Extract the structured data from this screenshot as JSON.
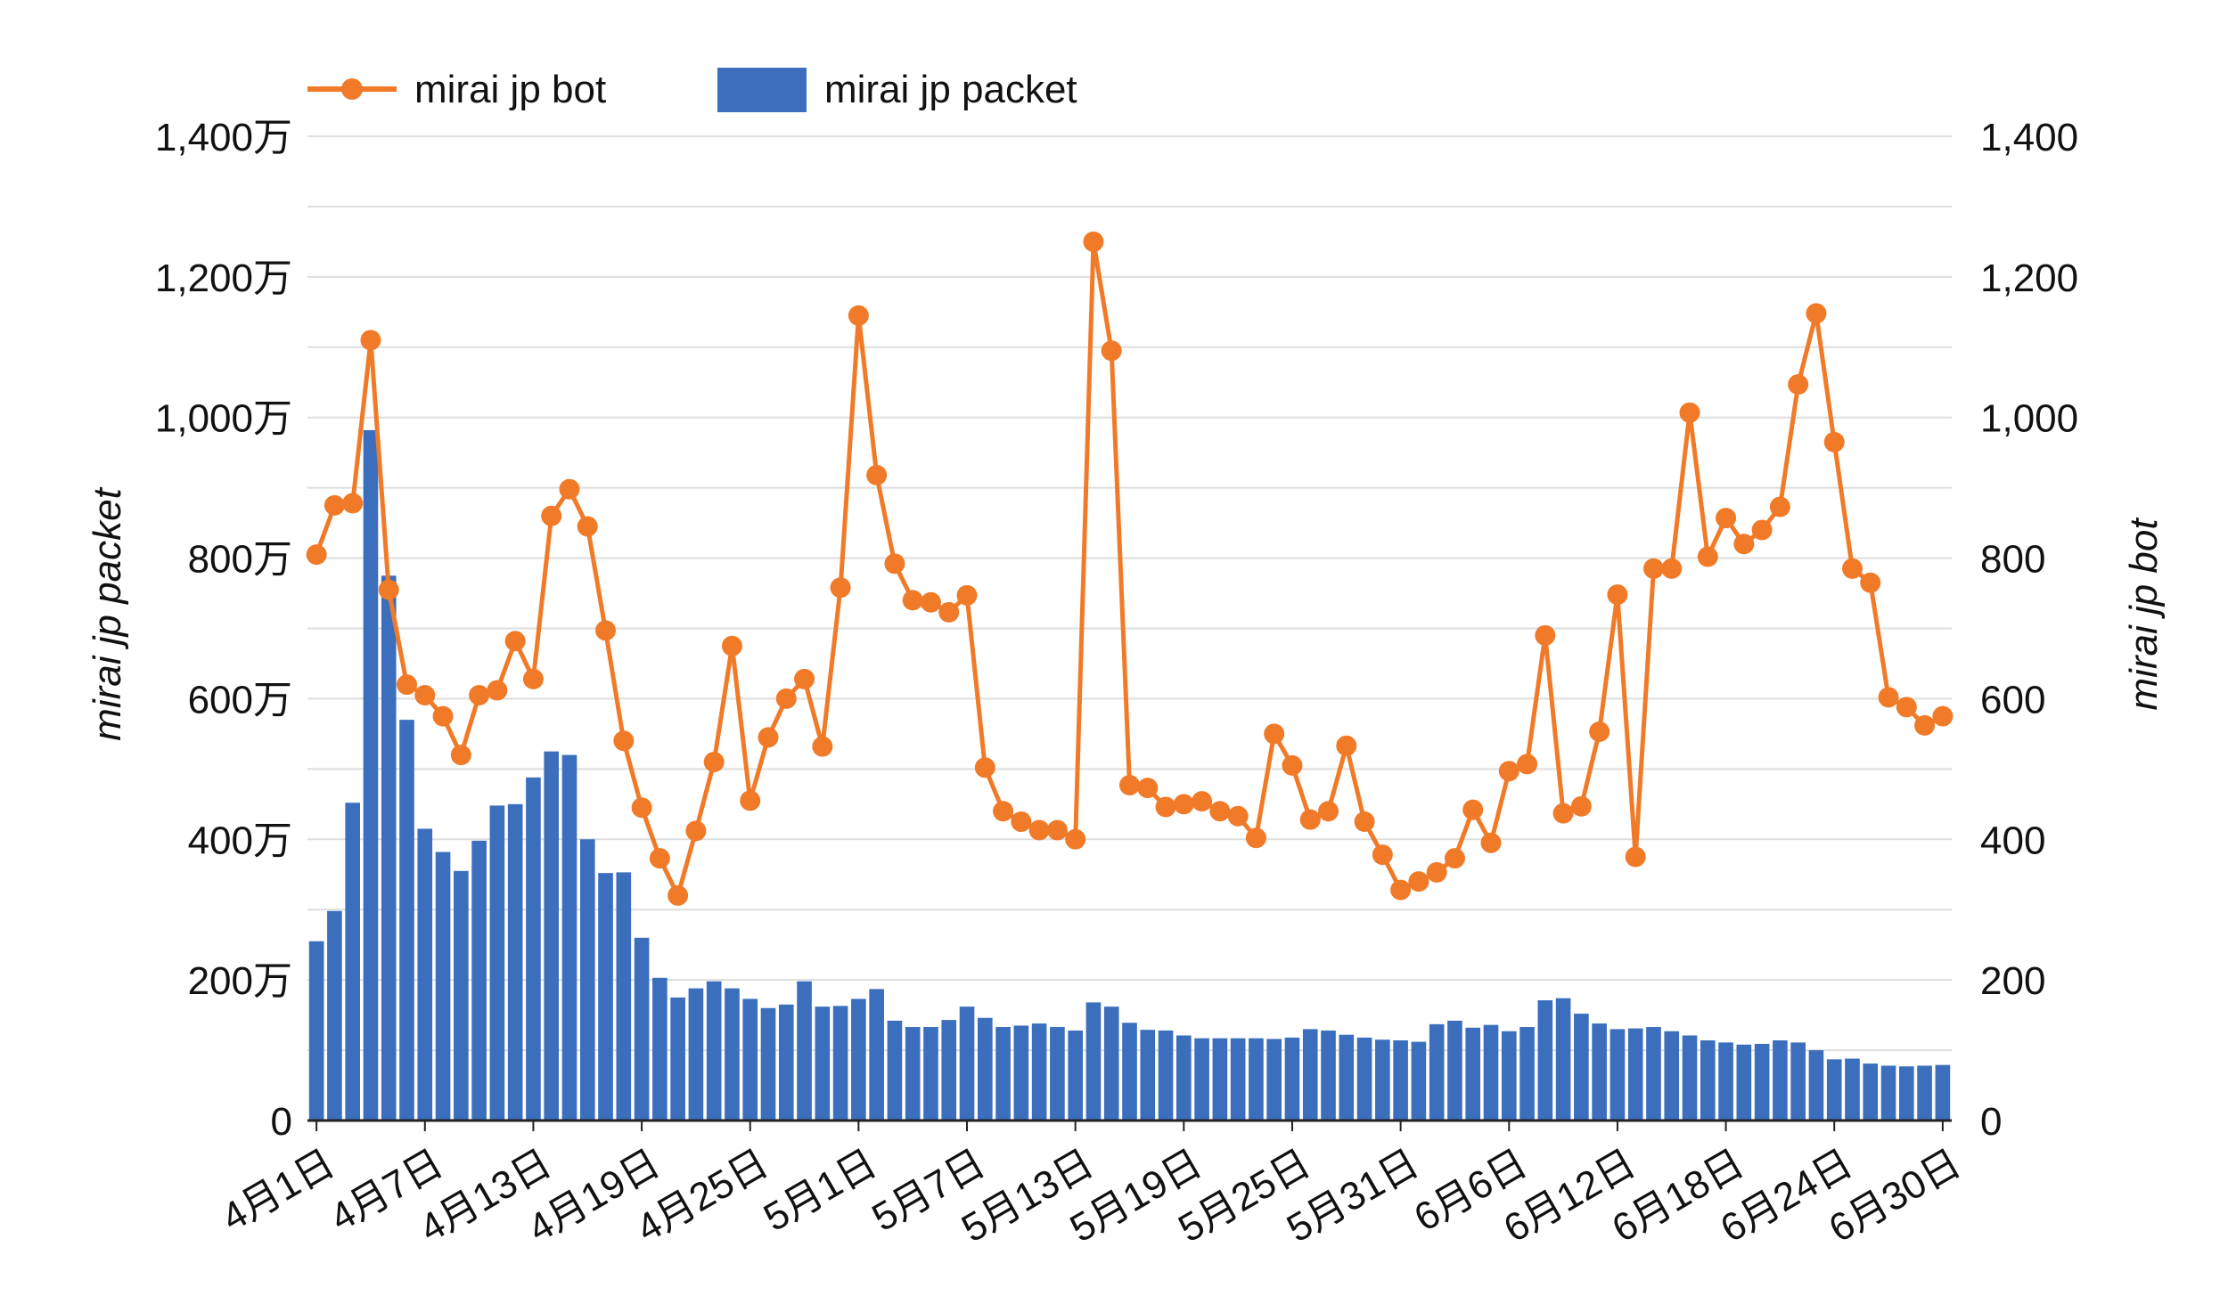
{
  "chart_data": {
    "type": "bar+line",
    "x_tick_labels": [
      "4月1日",
      "4月7日",
      "4月13日",
      "4月19日",
      "4月25日",
      "5月1日",
      "5月7日",
      "5月13日",
      "5月19日",
      "5月25日",
      "5月31日",
      "6月6日",
      "6月12日",
      "6月18日",
      "6月24日",
      "6月30日"
    ],
    "left_axis": {
      "label": "mirai jp packet",
      "range": [
        0,
        14000000
      ],
      "ticks": [
        0,
        2000000,
        4000000,
        6000000,
        8000000,
        10000000,
        12000000,
        14000000
      ],
      "tick_labels": [
        "0",
        "200万",
        "400万",
        "600万",
        "800万",
        "1,000万",
        "1,200万",
        "1,400万"
      ]
    },
    "right_axis": {
      "label": "mirai jp bot",
      "range": [
        0,
        1400
      ],
      "ticks": [
        0,
        200,
        400,
        600,
        800,
        1000,
        1200,
        1400
      ],
      "tick_labels": [
        "0",
        "200",
        "400",
        "600",
        "800",
        "1,000",
        "1,200",
        "1,400"
      ]
    },
    "grid": true,
    "legend_position": "top-left",
    "series": [
      {
        "name": "mirai jp bot",
        "type": "line",
        "axis": "right",
        "color": "#f07a28",
        "values": [
          805,
          875,
          878,
          1110,
          755,
          620,
          605,
          575,
          520,
          605,
          612,
          682,
          628,
          860,
          898,
          845,
          697,
          540,
          445,
          373,
          320,
          412,
          510,
          675,
          455,
          545,
          600,
          628,
          532,
          758,
          1145,
          918,
          792,
          740,
          737,
          723,
          747,
          502,
          440,
          425,
          413,
          413,
          400,
          1250,
          1095,
          477,
          473,
          446,
          450,
          454,
          440,
          433,
          402,
          550,
          505,
          428,
          440,
          533,
          425,
          378,
          328,
          340,
          353,
          373,
          442,
          395,
          497,
          507,
          690,
          437,
          447,
          553,
          748,
          375,
          785,
          785,
          1007,
          802,
          857,
          820,
          840,
          873,
          1047,
          1148,
          965,
          785,
          765,
          602,
          588,
          562,
          575
        ]
      },
      {
        "name": "mirai jp packet",
        "type": "bar",
        "axis": "left",
        "color": "#3b6fbd",
        "values": [
          2550000,
          2980000,
          4520000,
          9820000,
          7750000,
          5700000,
          4150000,
          3820000,
          3550000,
          3980000,
          4480000,
          4500000,
          4880000,
          5250000,
          5200000,
          4000000,
          3520000,
          3530000,
          2600000,
          2030000,
          1750000,
          1880000,
          1980000,
          1880000,
          1730000,
          1600000,
          1650000,
          1980000,
          1620000,
          1630000,
          1730000,
          1870000,
          1420000,
          1330000,
          1330000,
          1430000,
          1620000,
          1460000,
          1330000,
          1350000,
          1380000,
          1330000,
          1280000,
          1680000,
          1620000,
          1390000,
          1290000,
          1280000,
          1210000,
          1170000,
          1170000,
          1170000,
          1170000,
          1160000,
          1180000,
          1300000,
          1280000,
          1220000,
          1180000,
          1150000,
          1140000,
          1120000,
          1370000,
          1420000,
          1320000,
          1360000,
          1270000,
          1330000,
          1710000,
          1740000,
          1520000,
          1380000,
          1300000,
          1310000,
          1330000,
          1270000,
          1210000,
          1140000,
          1110000,
          1080000,
          1090000,
          1140000,
          1110000,
          1000000,
          870000,
          880000,
          810000,
          780000,
          770000,
          780000,
          790000
        ]
      }
    ]
  }
}
